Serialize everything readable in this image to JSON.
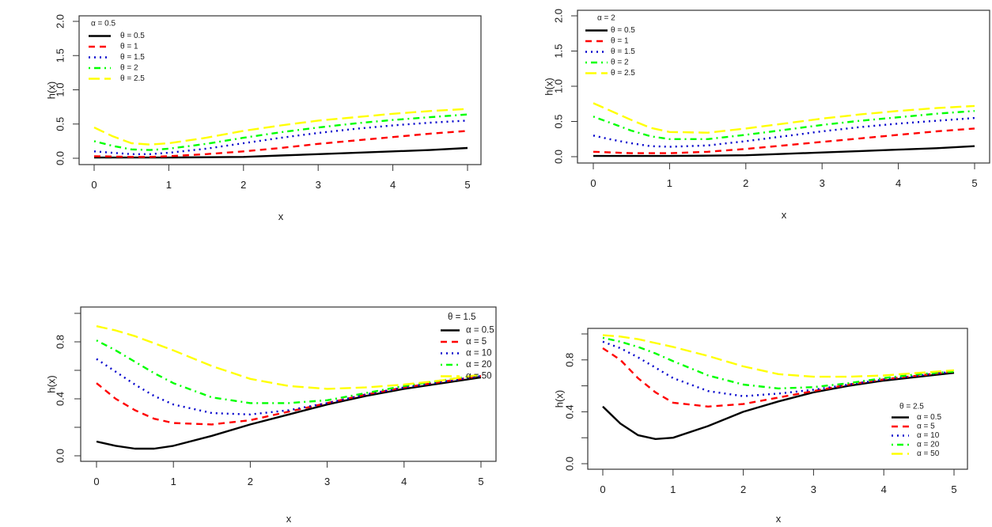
{
  "chart_data": [
    {
      "type": "line",
      "title": "",
      "xlabel": "x",
      "ylabel": "h(x)",
      "xlim": [
        0,
        5
      ],
      "ylim": [
        0,
        2
      ],
      "x_ticks": [
        "0",
        "1",
        "2",
        "3",
        "4",
        "5"
      ],
      "y_ticks": [
        "0.0",
        "0.5",
        "1.0",
        "1.5",
        "2.0"
      ],
      "legend_title": "α = 0.5",
      "legend_position": "top-left",
      "x": [
        0,
        0.25,
        0.5,
        0.75,
        1,
        1.5,
        2,
        2.5,
        3,
        3.5,
        4,
        4.5,
        5
      ],
      "series": [
        {
          "name": "θ = 0.5",
          "color": "#000000",
          "dash": "solid",
          "values": [
            0.01,
            0.01,
            0.01,
            0.01,
            0.01,
            0.015,
            0.02,
            0.04,
            0.06,
            0.08,
            0.1,
            0.12,
            0.15
          ]
        },
        {
          "name": "θ = 1",
          "color": "#ff0000",
          "dash": "dashed",
          "values": [
            0.03,
            0.025,
            0.02,
            0.02,
            0.03,
            0.06,
            0.1,
            0.15,
            0.21,
            0.26,
            0.31,
            0.36,
            0.4
          ]
        },
        {
          "name": "θ = 1.5",
          "color": "#0000cc",
          "dash": "dotted",
          "values": [
            0.1,
            0.08,
            0.06,
            0.06,
            0.08,
            0.14,
            0.22,
            0.3,
            0.37,
            0.43,
            0.48,
            0.52,
            0.55
          ]
        },
        {
          "name": "θ = 2",
          "color": "#00ff00",
          "dash": "dotdash",
          "values": [
            0.25,
            0.18,
            0.13,
            0.12,
            0.14,
            0.21,
            0.3,
            0.38,
            0.45,
            0.51,
            0.56,
            0.6,
            0.64
          ]
        },
        {
          "name": "θ = 2.5",
          "color": "#ffff00",
          "dash": "longdash",
          "values": [
            0.45,
            0.32,
            0.22,
            0.2,
            0.22,
            0.3,
            0.4,
            0.48,
            0.55,
            0.6,
            0.65,
            0.69,
            0.72
          ]
        }
      ]
    },
    {
      "type": "line",
      "title": "",
      "xlabel": "x",
      "ylabel": "h(x)",
      "xlim": [
        0,
        5
      ],
      "ylim": [
        0,
        2
      ],
      "x_ticks": [
        "0",
        "1",
        "2",
        "3",
        "4",
        "5"
      ],
      "y_ticks": [
        "0.0",
        "0.5",
        "1.0",
        "1.5",
        "2.0"
      ],
      "legend_title": "α = 2",
      "legend_position": "top-left",
      "x": [
        0,
        0.25,
        0.5,
        0.75,
        1,
        1.5,
        2,
        2.5,
        3,
        3.5,
        4,
        4.5,
        5
      ],
      "series": [
        {
          "name": "θ = 0.5",
          "color": "#000000",
          "dash": "solid",
          "values": [
            0.01,
            0.01,
            0.01,
            0.01,
            0.01,
            0.015,
            0.02,
            0.04,
            0.06,
            0.08,
            0.1,
            0.12,
            0.15
          ]
        },
        {
          "name": "θ = 1",
          "color": "#ff0000",
          "dash": "dashed",
          "values": [
            0.07,
            0.06,
            0.05,
            0.05,
            0.05,
            0.07,
            0.11,
            0.16,
            0.21,
            0.26,
            0.31,
            0.36,
            0.4
          ]
        },
        {
          "name": "θ = 1.5",
          "color": "#0000cc",
          "dash": "dotted",
          "values": [
            0.3,
            0.24,
            0.19,
            0.15,
            0.14,
            0.16,
            0.22,
            0.29,
            0.36,
            0.42,
            0.47,
            0.51,
            0.55
          ]
        },
        {
          "name": "θ = 2",
          "color": "#00ff00",
          "dash": "dotdash",
          "values": [
            0.57,
            0.47,
            0.37,
            0.29,
            0.25,
            0.25,
            0.31,
            0.38,
            0.45,
            0.51,
            0.56,
            0.61,
            0.65
          ]
        },
        {
          "name": "θ = 2.5",
          "color": "#ffff00",
          "dash": "longdash",
          "values": [
            0.76,
            0.64,
            0.52,
            0.41,
            0.35,
            0.34,
            0.4,
            0.47,
            0.54,
            0.6,
            0.65,
            0.69,
            0.72
          ]
        }
      ]
    },
    {
      "type": "line",
      "title": "",
      "xlabel": "x",
      "ylabel": "h(x)",
      "xlim": [
        0,
        5
      ],
      "ylim": [
        0,
        1
      ],
      "x_ticks": [
        "0",
        "1",
        "2",
        "3",
        "4",
        "5"
      ],
      "y_ticks": [
        "0.0",
        "0.4",
        "0.8"
      ],
      "y_minor_ticks": [
        0.2,
        0.6,
        1.0
      ],
      "legend_title": "θ = 1.5",
      "legend_position": "top-right",
      "x": [
        0,
        0.25,
        0.5,
        0.75,
        1,
        1.5,
        2,
        2.5,
        3,
        3.5,
        4,
        4.5,
        5
      ],
      "series": [
        {
          "name": "α = 0.5",
          "color": "#000000",
          "dash": "solid",
          "values": [
            0.1,
            0.07,
            0.05,
            0.05,
            0.07,
            0.14,
            0.22,
            0.29,
            0.36,
            0.42,
            0.47,
            0.51,
            0.55
          ]
        },
        {
          "name": "α = 5",
          "color": "#ff0000",
          "dash": "dashed",
          "values": [
            0.51,
            0.4,
            0.32,
            0.26,
            0.23,
            0.22,
            0.25,
            0.31,
            0.37,
            0.43,
            0.48,
            0.52,
            0.56
          ]
        },
        {
          "name": "α = 10",
          "color": "#0000cc",
          "dash": "dotted",
          "values": [
            0.68,
            0.59,
            0.5,
            0.42,
            0.36,
            0.3,
            0.29,
            0.32,
            0.37,
            0.43,
            0.48,
            0.52,
            0.56
          ]
        },
        {
          "name": "α = 20",
          "color": "#00ff00",
          "dash": "dotdash",
          "values": [
            0.81,
            0.74,
            0.66,
            0.58,
            0.51,
            0.41,
            0.37,
            0.37,
            0.39,
            0.44,
            0.49,
            0.53,
            0.57
          ]
        },
        {
          "name": "α = 50",
          "color": "#ffff00",
          "dash": "longdash",
          "values": [
            0.91,
            0.88,
            0.84,
            0.79,
            0.74,
            0.63,
            0.54,
            0.49,
            0.47,
            0.48,
            0.5,
            0.53,
            0.57
          ]
        }
      ]
    },
    {
      "type": "line",
      "title": "",
      "xlabel": "x",
      "ylabel": "h(x)",
      "xlim": [
        0,
        5
      ],
      "ylim": [
        0,
        1
      ],
      "x_ticks": [
        "0",
        "1",
        "2",
        "3",
        "4",
        "5"
      ],
      "y_ticks": [
        "0.0",
        "0.4",
        "0.8"
      ],
      "y_minor_ticks": [
        0.2,
        0.6,
        1.0
      ],
      "legend_title": "θ = 2.5",
      "legend_position": "bottom-right",
      "x": [
        0,
        0.25,
        0.5,
        0.75,
        1,
        1.5,
        2,
        2.5,
        3,
        3.5,
        4,
        4.5,
        5
      ],
      "series": [
        {
          "name": "α = 0.5",
          "color": "#000000",
          "dash": "solid",
          "values": [
            0.44,
            0.31,
            0.22,
            0.19,
            0.2,
            0.29,
            0.4,
            0.48,
            0.55,
            0.6,
            0.64,
            0.67,
            0.7
          ]
        },
        {
          "name": "α = 5",
          "color": "#ff0000",
          "dash": "dashed",
          "values": [
            0.89,
            0.8,
            0.66,
            0.55,
            0.47,
            0.44,
            0.46,
            0.51,
            0.56,
            0.61,
            0.65,
            0.68,
            0.71
          ]
        },
        {
          "name": "α = 10",
          "color": "#0000cc",
          "dash": "dotted",
          "values": [
            0.94,
            0.89,
            0.82,
            0.74,
            0.66,
            0.56,
            0.52,
            0.54,
            0.57,
            0.61,
            0.65,
            0.68,
            0.71
          ]
        },
        {
          "name": "α = 20",
          "color": "#00ff00",
          "dash": "dotdash",
          "values": [
            0.97,
            0.94,
            0.9,
            0.85,
            0.79,
            0.68,
            0.61,
            0.58,
            0.59,
            0.62,
            0.66,
            0.69,
            0.71
          ]
        },
        {
          "name": "α = 50",
          "color": "#ffff00",
          "dash": "longdash",
          "values": [
            0.99,
            0.98,
            0.96,
            0.93,
            0.9,
            0.83,
            0.75,
            0.69,
            0.67,
            0.67,
            0.68,
            0.7,
            0.72
          ]
        }
      ]
    }
  ]
}
